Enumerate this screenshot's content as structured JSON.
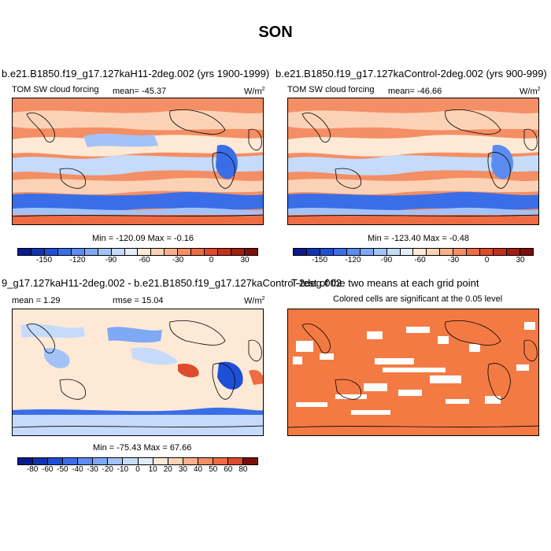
{
  "title": "SON",
  "panels": {
    "p1": {
      "title": "b.e21.B1850.f19_g17.127kaH11-2deg.002 (yrs 1900-1999)",
      "left_label": "TOM SW cloud forcing",
      "center_label": "mean= -45.37",
      "units": "W/m",
      "units_sup": "2",
      "minmax": "Min = -120.09 Max =  -0.16"
    },
    "p2": {
      "title": "b.e21.B1850.f19_g17.127kaControl-2deg.002 (yrs 900-999)",
      "left_label": "TOM SW cloud forcing",
      "center_label": "mean= -46.66",
      "units": "W/m",
      "units_sup": "2",
      "minmax": "Min = -123.40 Max =  -0.48"
    },
    "p3": {
      "title": "9_g17.127kaH11-2deg.002 - b.e21.B1850.f19_g17.127kaControl-2deg.002",
      "left_label": "mean =   1.29",
      "center_label": "rmse =  15.04",
      "units": "W/m",
      "units_sup": "2",
      "minmax": "Min = -75.43 Max =  67.66"
    },
    "p4": {
      "title": "T-test of the two means at each grid point",
      "subtitle": "Colored cells are significant at the 0.05 level"
    }
  },
  "colorbar_top": {
    "ticks": [
      "-150",
      "-120",
      "-90",
      "-60",
      "-30",
      "0",
      "30"
    ],
    "colors": [
      "#0a1a8c",
      "#1233b0",
      "#1f4fd6",
      "#3a6ee8",
      "#5b8cf0",
      "#7fa8f5",
      "#a3c3f8",
      "#c6dbfa",
      "#e2ecfb",
      "#fde9d6",
      "#fbd2b5",
      "#f8b08a",
      "#f48e64",
      "#ee6c44",
      "#de4b2c",
      "#c3311d",
      "#a51c12",
      "#7d0e0a"
    ]
  },
  "colorbar_bottom": {
    "ticks": [
      "-80",
      "-60",
      "-50",
      "-40",
      "-30",
      "-20",
      "-10",
      "0",
      "10",
      "20",
      "30",
      "40",
      "50",
      "60",
      "80"
    ],
    "colors": [
      "#0a1a8c",
      "#1233b0",
      "#1f4fd6",
      "#3a6ee8",
      "#5b8cf0",
      "#7fa8f5",
      "#a3c3f8",
      "#c6dbfa",
      "#e2ecfb",
      "#fde9d6",
      "#fbd2b5",
      "#f8b08a",
      "#f48e64",
      "#ee6c44",
      "#de4b2c",
      "#7d0e0a"
    ]
  }
}
